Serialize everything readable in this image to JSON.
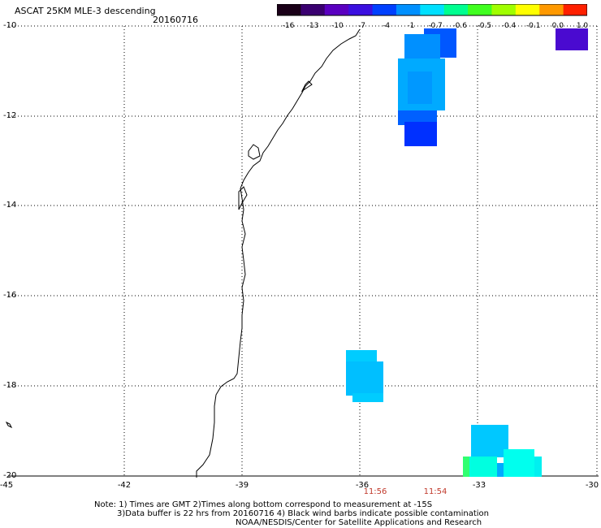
{
  "header": {
    "title": "ASCAT 25KM MLE-3 descending",
    "date": "20160716"
  },
  "colorbar": {
    "labels": [
      "-16",
      "-13",
      "-10",
      "-7",
      "-4",
      "-1",
      "-0.7",
      "-0.6",
      "-0.5",
      "-0.4",
      "-0.1",
      "0.0",
      "1.0"
    ],
    "colors": [
      "#1a0018",
      "#3a0070",
      "#5a00c0",
      "#3b10e0",
      "#0040ff",
      "#0090ff",
      "#00e0ff",
      "#00ff90",
      "#40ff20",
      "#a0ff00",
      "#ffff00",
      "#ff9900",
      "#ff2000"
    ]
  },
  "axes": {
    "y_labels": [
      "-10",
      "-12",
      "-14",
      "-16",
      "-18",
      "-20"
    ],
    "x_labels": [
      "-45",
      "-42",
      "-39",
      "-36",
      "-33",
      "-30"
    ]
  },
  "times": [
    "11:56",
    "11:54"
  ],
  "notes": {
    "line1": "Note: 1) Times are GMT 2)Times along bottom correspond to measurement at -15S",
    "line2": "3)Data buffer is 22 hrs from 20160716 4) Black wind barbs indicate possible contamination",
    "line3": "NOAA/NESDIS/Center for Satellite Applications and Research"
  }
}
